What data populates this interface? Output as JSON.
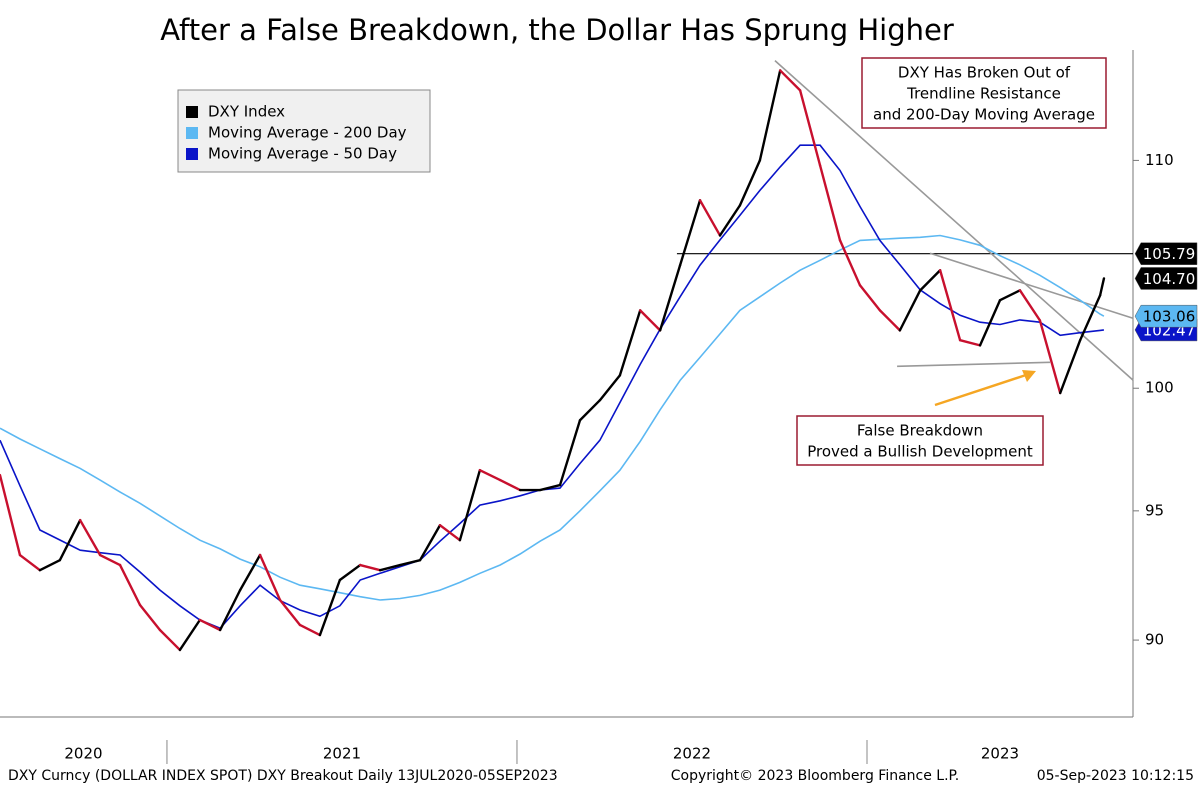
{
  "chart_data": {
    "type": "line",
    "title": "After a False Breakdown, the Dollar Has Sprung Higher",
    "log_y": true,
    "legend": "upper-left",
    "xlim": [
      2020.523,
      2023.76
    ],
    "ylim": [
      87.15,
      115.2
    ],
    "yticks": [
      90,
      95,
      100,
      110
    ],
    "xticks": [
      2021,
      2022,
      2023
    ],
    "xlabels": [
      2020,
      2021,
      2022,
      2023
    ],
    "x": [
      2020.523,
      2020.58,
      2020.637,
      2020.694,
      2020.752,
      2020.809,
      2020.866,
      2020.923,
      2020.98,
      2021.037,
      2021.094,
      2021.152,
      2021.209,
      2021.266,
      2021.323,
      2021.38,
      2021.437,
      2021.494,
      2021.552,
      2021.609,
      2021.666,
      2021.723,
      2021.78,
      2021.837,
      2021.894,
      2021.952,
      2022.009,
      2022.066,
      2022.123,
      2022.18,
      2022.237,
      2022.294,
      2022.352,
      2022.409,
      2022.466,
      2022.523,
      2022.58,
      2022.637,
      2022.694,
      2022.752,
      2022.809,
      2022.866,
      2022.923,
      2022.98,
      2023.037,
      2023.094,
      2023.152,
      2023.209,
      2023.266,
      2023.323,
      2023.38,
      2023.437,
      2023.494,
      2023.552,
      2023.609,
      2023.666,
      2023.677
    ],
    "series": [
      {
        "name": "DXY Index",
        "color": "#000000",
        "down_color": "#c8102e",
        "last_label": "104.70",
        "values": [
          96.43,
          93.26,
          92.67,
          93.06,
          94.63,
          93.26,
          92.87,
          91.33,
          90.38,
          89.63,
          90.76,
          90.38,
          91.9,
          93.26,
          91.52,
          90.57,
          90.19,
          92.29,
          92.87,
          92.67,
          92.87,
          93.06,
          94.43,
          93.84,
          96.63,
          96.23,
          95.83,
          95.83,
          96.03,
          98.67,
          99.5,
          100.54,
          103.31,
          102.45,
          105.28,
          108.18,
          106.6,
          107.95,
          110.0,
          114.22,
          113.27,
          109.77,
          106.38,
          104.4,
          103.31,
          102.45,
          104.18,
          105.06,
          102.03,
          101.81,
          103.75,
          104.18,
          102.88,
          99.8,
          102.03,
          103.96,
          104.7
        ]
      },
      {
        "name": "Moving Average - 200 Day",
        "color": "#5cb8f2",
        "last_label": "103.06",
        "values": [
          98.34,
          97.9,
          97.5,
          97.1,
          96.7,
          96.23,
          95.75,
          95.3,
          94.8,
          94.3,
          93.84,
          93.5,
          93.1,
          92.8,
          92.4,
          92.09,
          91.95,
          91.8,
          91.65,
          91.52,
          91.58,
          91.7,
          91.9,
          92.2,
          92.55,
          92.87,
          93.3,
          93.8,
          94.24,
          95.0,
          95.8,
          96.63,
          97.8,
          99.1,
          100.33,
          101.3,
          102.3,
          103.31,
          103.9,
          104.5,
          105.06,
          105.5,
          105.95,
          106.38,
          106.43,
          106.48,
          106.52,
          106.6,
          106.4,
          106.16,
          105.7,
          105.3,
          104.84,
          104.3,
          103.75,
          103.15,
          103.06
        ]
      },
      {
        "name": "Moving Average - 50 Day",
        "color": "#0a14c8",
        "last_label": "102.47",
        "values": [
          97.85,
          96.0,
          94.24,
          93.85,
          93.45,
          93.35,
          93.26,
          92.6,
          91.9,
          91.3,
          90.76,
          90.45,
          91.3,
          92.09,
          91.5,
          91.14,
          90.9,
          91.3,
          92.29,
          92.55,
          92.8,
          93.06,
          93.8,
          94.5,
          95.23,
          95.4,
          95.6,
          95.83,
          95.91,
          96.9,
          97.85,
          99.4,
          101.0,
          102.5,
          103.9,
          105.28,
          106.4,
          107.5,
          108.63,
          109.7,
          110.7,
          110.7,
          109.54,
          107.9,
          106.38,
          105.3,
          104.2,
          103.6,
          103.1,
          102.8,
          102.7,
          102.9,
          102.8,
          102.24,
          102.35,
          102.45,
          102.47
        ]
      }
    ],
    "levels": [
      {
        "value": 105.79,
        "label": "105.79",
        "x_from": 2022.457
      }
    ],
    "trendlines": [
      {
        "x": [
          2022.737,
          2023.76
        ],
        "y": [
          114.69,
          100.34
        ]
      },
      {
        "x": [
          2023.18,
          2023.76
        ],
        "y": [
          105.81,
          102.97
        ]
      },
      {
        "x": [
          2023.086,
          2023.523
        ],
        "y": [
          100.92,
          101.09
        ]
      }
    ],
    "annotations": [
      {
        "lines": [
          "DXY Has Broken Out of",
          "Trendline Resistance",
          "and 200-Day Moving Average"
        ]
      },
      {
        "lines": [
          "False Breakdown",
          "Proved a Bullish Development"
        ]
      }
    ],
    "footer": {
      "left": "DXY Curncy (DOLLAR INDEX SPOT) DXY Breakout  Daily 13JUL2020-05SEP2023",
      "center": "Copyright© 2023 Bloomberg Finance L.P.",
      "right": "05-Sep-2023 10:12:15"
    }
  }
}
